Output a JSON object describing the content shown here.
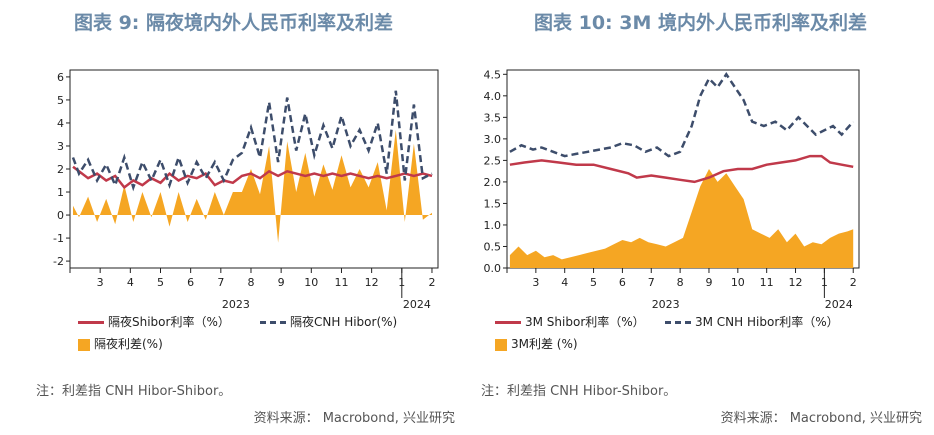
{
  "colors": {
    "shibor": "#c0394a",
    "hibor": "#3d4d6b",
    "spread": "#f5a623",
    "title": "#6b8aa8"
  },
  "left": {
    "title": "图表 9: 隔夜境内外人民币利率及利差",
    "legend": {
      "shibor": "隔夜Shibor利率（%）",
      "hibor": "隔夜CNH Hibor(%)",
      "spread": "隔夜利差(%)"
    },
    "note": "注：利差指 CNH Hibor-Shibor。",
    "source": "资料来源：  Macrobond, 兴业研究"
  },
  "right": {
    "title": "图表 10: 3M 境内外人民币利率及利差",
    "legend": {
      "shibor": "3M Shibor利率（%）",
      "hibor": "3M CNH Hibor利率（%）",
      "spread": "3M利差 (%)"
    },
    "note": "注：利差指 CNH Hibor-Shibor。",
    "source": "资料来源：  Macrobond, 兴业研究"
  },
  "chart_data": [
    {
      "type": "line",
      "title": "图表 9: 隔夜境内外人民币利率及利差",
      "x_tick_labels": [
        "3",
        "4",
        "5",
        "6",
        "7",
        "8",
        "9",
        "10",
        "11",
        "12",
        "1",
        "2"
      ],
      "x_year_labels": [
        "2023",
        "2024"
      ],
      "y_ticks": [
        6,
        5,
        4,
        3,
        2,
        1,
        0,
        -1,
        -2
      ],
      "ylim": [
        -2.3,
        6.3
      ],
      "series": [
        {
          "name": "隔夜Shibor利率（%）",
          "style": "line",
          "points": [
            [
              2.1,
              2.1
            ],
            [
              2.3,
              1.9
            ],
            [
              2.6,
              1.6
            ],
            [
              2.9,
              1.8
            ],
            [
              3.2,
              1.5
            ],
            [
              3.5,
              1.7
            ],
            [
              3.8,
              1.2
            ],
            [
              4.1,
              1.5
            ],
            [
              4.4,
              1.3
            ],
            [
              4.7,
              1.6
            ],
            [
              5.0,
              1.4
            ],
            [
              5.3,
              1.8
            ],
            [
              5.6,
              1.5
            ],
            [
              5.9,
              1.7
            ],
            [
              6.2,
              1.6
            ],
            [
              6.5,
              1.8
            ],
            [
              6.8,
              1.3
            ],
            [
              7.1,
              1.5
            ],
            [
              7.4,
              1.4
            ],
            [
              7.7,
              1.7
            ],
            [
              8.0,
              1.8
            ],
            [
              8.3,
              1.6
            ],
            [
              8.6,
              1.9
            ],
            [
              8.9,
              1.7
            ],
            [
              9.2,
              1.9
            ],
            [
              9.5,
              1.8
            ],
            [
              9.8,
              1.7
            ],
            [
              10.1,
              1.8
            ],
            [
              10.4,
              1.7
            ],
            [
              10.7,
              1.8
            ],
            [
              11.0,
              1.7
            ],
            [
              11.3,
              1.8
            ],
            [
              11.6,
              1.7
            ],
            [
              11.9,
              1.6
            ],
            [
              12.2,
              1.7
            ],
            [
              12.5,
              1.6
            ],
            [
              12.8,
              1.7
            ],
            [
              13.1,
              1.8
            ],
            [
              13.4,
              1.7
            ],
            [
              13.7,
              1.8
            ],
            [
              14.0,
              1.7
            ]
          ]
        },
        {
          "name": "隔夜CNH Hibor(%)",
          "style": "dashed",
          "points": [
            [
              2.1,
              2.5
            ],
            [
              2.3,
              1.8
            ],
            [
              2.6,
              2.4
            ],
            [
              2.9,
              1.5
            ],
            [
              3.2,
              2.2
            ],
            [
              3.5,
              1.3
            ],
            [
              3.8,
              2.5
            ],
            [
              4.1,
              1.2
            ],
            [
              4.4,
              2.3
            ],
            [
              4.7,
              1.5
            ],
            [
              5.0,
              2.4
            ],
            [
              5.3,
              1.3
            ],
            [
              5.6,
              2.5
            ],
            [
              5.9,
              1.4
            ],
            [
              6.2,
              2.3
            ],
            [
              6.5,
              1.6
            ],
            [
              6.8,
              2.3
            ],
            [
              7.1,
              1.5
            ],
            [
              7.4,
              2.4
            ],
            [
              7.7,
              2.7
            ],
            [
              8.0,
              3.8
            ],
            [
              8.3,
              2.5
            ],
            [
              8.6,
              4.9
            ],
            [
              8.9,
              2.3
            ],
            [
              9.2,
              5.1
            ],
            [
              9.5,
              2.8
            ],
            [
              9.8,
              4.4
            ],
            [
              10.1,
              2.6
            ],
            [
              10.4,
              3.9
            ],
            [
              10.7,
              2.9
            ],
            [
              11.0,
              4.3
            ],
            [
              11.3,
              3.0
            ],
            [
              11.6,
              3.7
            ],
            [
              11.9,
              2.8
            ],
            [
              12.2,
              4.0
            ],
            [
              12.5,
              1.8
            ],
            [
              12.8,
              5.4
            ],
            [
              13.1,
              1.5
            ],
            [
              13.4,
              4.8
            ],
            [
              13.7,
              1.6
            ],
            [
              14.0,
              1.8
            ]
          ]
        },
        {
          "name": "隔夜利差(%)",
          "style": "area",
          "points": [
            [
              2.1,
              0.4
            ],
            [
              2.3,
              -0.1
            ],
            [
              2.6,
              0.8
            ],
            [
              2.9,
              -0.3
            ],
            [
              3.2,
              0.7
            ],
            [
              3.5,
              -0.4
            ],
            [
              3.8,
              1.3
            ],
            [
              4.1,
              -0.3
            ],
            [
              4.4,
              1.0
            ],
            [
              4.7,
              -0.1
            ],
            [
              5.0,
              1.0
            ],
            [
              5.3,
              -0.5
            ],
            [
              5.6,
              1.0
            ],
            [
              5.9,
              -0.3
            ],
            [
              6.2,
              0.7
            ],
            [
              6.5,
              -0.2
            ],
            [
              6.8,
              1.0
            ],
            [
              7.1,
              0.0
            ],
            [
              7.4,
              1.0
            ],
            [
              7.7,
              1.0
            ],
            [
              8.0,
              2.0
            ],
            [
              8.3,
              0.9
            ],
            [
              8.6,
              3.0
            ],
            [
              8.9,
              -1.2
            ],
            [
              9.2,
              3.2
            ],
            [
              9.5,
              1.0
            ],
            [
              9.8,
              2.7
            ],
            [
              10.1,
              0.8
            ],
            [
              10.4,
              2.2
            ],
            [
              10.7,
              1.1
            ],
            [
              11.0,
              2.6
            ],
            [
              11.3,
              1.2
            ],
            [
              11.6,
              2.0
            ],
            [
              11.9,
              1.2
            ],
            [
              12.2,
              2.3
            ],
            [
              12.5,
              0.2
            ],
            [
              12.8,
              3.7
            ],
            [
              13.1,
              -0.3
            ],
            [
              13.4,
              3.1
            ],
            [
              13.7,
              -0.2
            ],
            [
              14.0,
              0.1
            ]
          ]
        }
      ]
    },
    {
      "type": "line",
      "title": "图表 10: 3M 境内外人民币利率及利差",
      "x_tick_labels": [
        "3",
        "4",
        "5",
        "6",
        "7",
        "8",
        "9",
        "10",
        "11",
        "12",
        "1",
        "2"
      ],
      "x_year_labels": [
        "2023",
        "2024"
      ],
      "y_ticks": [
        4.5,
        4.0,
        3.5,
        3.0,
        2.5,
        2.0,
        1.5,
        1.0,
        0.5,
        0.0
      ],
      "ylim": [
        0,
        4.6
      ],
      "series": [
        {
          "name": "3M Shibor利率（%）",
          "style": "line",
          "points": [
            [
              2.1,
              2.4
            ],
            [
              2.6,
              2.45
            ],
            [
              3.2,
              2.5
            ],
            [
              3.8,
              2.45
            ],
            [
              4.4,
              2.4
            ],
            [
              5.0,
              2.4
            ],
            [
              5.6,
              2.3
            ],
            [
              6.2,
              2.2
            ],
            [
              6.5,
              2.1
            ],
            [
              7.0,
              2.15
            ],
            [
              7.5,
              2.1
            ],
            [
              8.0,
              2.05
            ],
            [
              8.5,
              2.0
            ],
            [
              9.0,
              2.1
            ],
            [
              9.5,
              2.25
            ],
            [
              10.0,
              2.3
            ],
            [
              10.5,
              2.3
            ],
            [
              11.0,
              2.4
            ],
            [
              11.5,
              2.45
            ],
            [
              12.0,
              2.5
            ],
            [
              12.5,
              2.6
            ],
            [
              12.9,
              2.6
            ],
            [
              13.2,
              2.45
            ],
            [
              13.6,
              2.4
            ],
            [
              14.0,
              2.35
            ]
          ]
        },
        {
          "name": "3M CNH Hibor利率（%）",
          "style": "dashed",
          "points": [
            [
              2.1,
              2.7
            ],
            [
              2.5,
              2.85
            ],
            [
              2.9,
              2.75
            ],
            [
              3.2,
              2.8
            ],
            [
              3.6,
              2.7
            ],
            [
              4.0,
              2.6
            ],
            [
              4.4,
              2.65
            ],
            [
              4.8,
              2.7
            ],
            [
              5.2,
              2.75
            ],
            [
              5.6,
              2.8
            ],
            [
              6.0,
              2.9
            ],
            [
              6.4,
              2.85
            ],
            [
              6.8,
              2.7
            ],
            [
              7.2,
              2.8
            ],
            [
              7.6,
              2.6
            ],
            [
              8.0,
              2.7
            ],
            [
              8.4,
              3.3
            ],
            [
              8.7,
              4.0
            ],
            [
              9.0,
              4.4
            ],
            [
              9.3,
              4.2
            ],
            [
              9.6,
              4.5
            ],
            [
              9.9,
              4.2
            ],
            [
              10.2,
              3.9
            ],
            [
              10.5,
              3.4
            ],
            [
              10.9,
              3.3
            ],
            [
              11.3,
              3.4
            ],
            [
              11.7,
              3.2
            ],
            [
              12.1,
              3.5
            ],
            [
              12.4,
              3.3
            ],
            [
              12.7,
              3.1
            ],
            [
              13.0,
              3.2
            ],
            [
              13.3,
              3.3
            ],
            [
              13.6,
              3.1
            ],
            [
              14.0,
              3.4
            ]
          ]
        },
        {
          "name": "3M利差 (%)",
          "style": "area",
          "points": [
            [
              2.1,
              0.3
            ],
            [
              2.4,
              0.5
            ],
            [
              2.7,
              0.3
            ],
            [
              3.0,
              0.4
            ],
            [
              3.3,
              0.25
            ],
            [
              3.6,
              0.3
            ],
            [
              3.9,
              0.2
            ],
            [
              4.2,
              0.25
            ],
            [
              4.5,
              0.3
            ],
            [
              4.8,
              0.35
            ],
            [
              5.1,
              0.4
            ],
            [
              5.4,
              0.45
            ],
            [
              5.7,
              0.55
            ],
            [
              6.0,
              0.65
            ],
            [
              6.3,
              0.6
            ],
            [
              6.6,
              0.7
            ],
            [
              6.9,
              0.6
            ],
            [
              7.2,
              0.55
            ],
            [
              7.5,
              0.5
            ],
            [
              7.8,
              0.6
            ],
            [
              8.1,
              0.7
            ],
            [
              8.4,
              1.3
            ],
            [
              8.7,
              1.9
            ],
            [
              9.0,
              2.3
            ],
            [
              9.3,
              2.0
            ],
            [
              9.6,
              2.2
            ],
            [
              9.9,
              1.9
            ],
            [
              10.2,
              1.6
            ],
            [
              10.5,
              0.9
            ],
            [
              10.8,
              0.8
            ],
            [
              11.1,
              0.7
            ],
            [
              11.4,
              0.9
            ],
            [
              11.7,
              0.6
            ],
            [
              12.0,
              0.8
            ],
            [
              12.3,
              0.5
            ],
            [
              12.6,
              0.6
            ],
            [
              12.9,
              0.55
            ],
            [
              13.2,
              0.7
            ],
            [
              13.5,
              0.8
            ],
            [
              13.8,
              0.85
            ],
            [
              14.0,
              0.9
            ]
          ]
        }
      ]
    }
  ]
}
